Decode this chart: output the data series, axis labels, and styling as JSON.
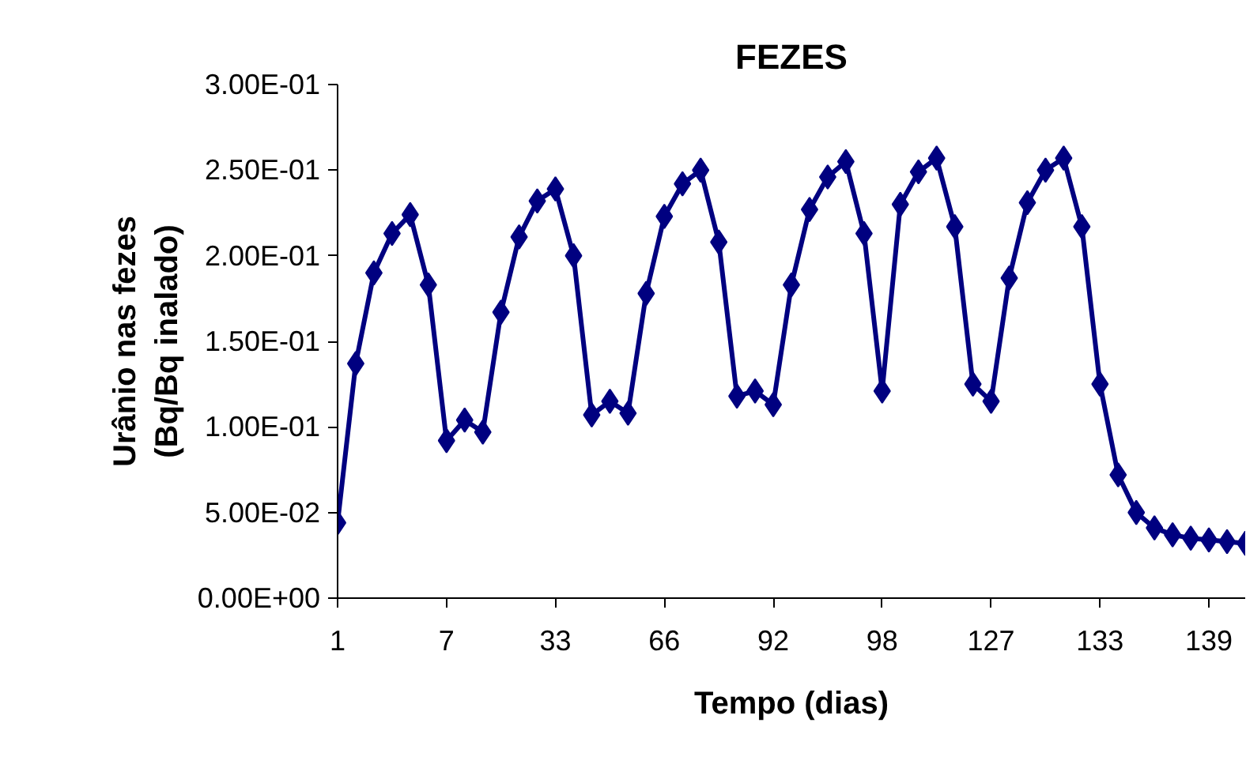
{
  "chart_data": {
    "type": "line",
    "title": "FEZES",
    "xlabel": "Tempo (dias)",
    "ylabel": "Urânio nas fezes\n(Bq/Bq inalado)",
    "categories": [
      "1",
      null,
      null,
      null,
      null,
      null,
      "7",
      null,
      null,
      null,
      null,
      null,
      "33",
      null,
      null,
      null,
      null,
      null,
      "66",
      null,
      null,
      null,
      null,
      null,
      "92",
      null,
      null,
      null,
      null,
      null,
      "98",
      null,
      null,
      null,
      null,
      null,
      "127",
      null,
      null,
      null,
      null,
      null,
      "133",
      null,
      null,
      null,
      null,
      null,
      "139",
      null,
      null
    ],
    "series": [
      {
        "color": "#000080",
        "values": [
          0.044,
          0.137,
          0.19,
          0.213,
          0.224,
          0.183,
          0.092,
          0.104,
          0.097,
          0.167,
          0.211,
          0.232,
          0.239,
          0.2,
          0.107,
          0.115,
          0.108,
          0.178,
          0.223,
          0.242,
          0.25,
          0.208,
          0.118,
          0.121,
          0.113,
          0.183,
          0.227,
          0.246,
          0.255,
          0.213,
          0.121,
          0.23,
          0.249,
          0.257,
          0.217,
          0.125,
          0.115,
          0.187,
          0.231,
          0.25,
          0.257,
          0.217,
          0.125,
          0.072,
          0.05,
          0.041,
          0.037,
          0.035,
          0.034,
          0.033,
          0.032
        ]
      }
    ],
    "ylim": [
      0,
      0.3
    ],
    "yticks": [
      {
        "value": 0,
        "label": "0.00E+00"
      },
      {
        "value": 0.05,
        "label": "5.00E-02"
      },
      {
        "value": 0.1,
        "label": "1.00E-01"
      },
      {
        "value": 0.15,
        "label": "1.50E-01"
      },
      {
        "value": 0.2,
        "label": "2.00E-01"
      },
      {
        "value": 0.25,
        "label": "2.50E-01"
      },
      {
        "value": 0.3,
        "label": "3.00E-01"
      }
    ],
    "marker": "diamond"
  }
}
